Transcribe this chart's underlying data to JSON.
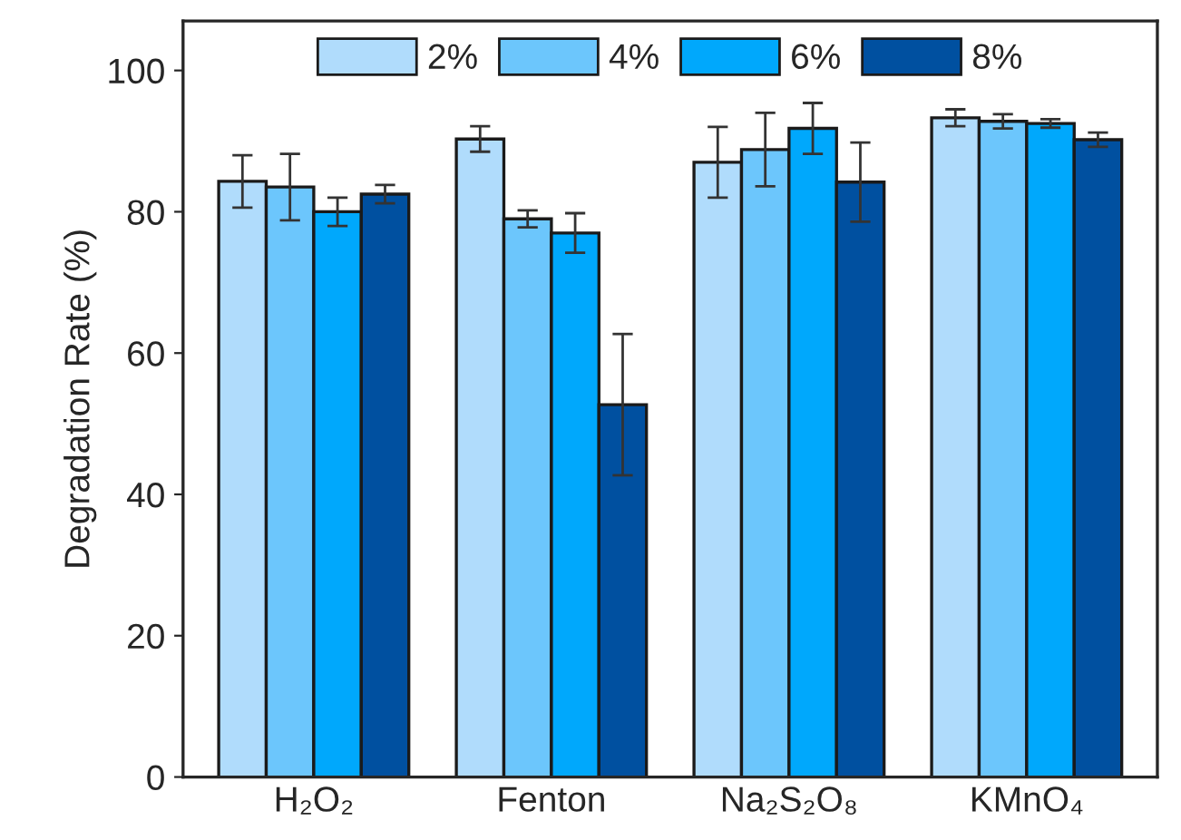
{
  "chart_data": {
    "type": "bar",
    "ylabel": "Degradation Rate (%)",
    "categories": [
      "H₂O₂",
      "Fenton",
      "Na₂S₂O₈",
      "KMnO₄"
    ],
    "series": [
      {
        "name": "2%",
        "color": "#b0dcfc",
        "values": [
          84.3,
          90.3,
          87.0,
          93.3
        ],
        "errors": [
          3.7,
          1.8,
          5.0,
          1.2
        ]
      },
      {
        "name": "4%",
        "color": "#6cc6fc",
        "values": [
          83.5,
          79.0,
          88.8,
          92.8
        ],
        "errors": [
          4.7,
          1.2,
          5.2,
          1.0
        ]
      },
      {
        "name": "6%",
        "color": "#00a8fc",
        "values": [
          80.0,
          77.0,
          91.8,
          92.5
        ],
        "errors": [
          2.0,
          2.8,
          3.6,
          0.6
        ]
      },
      {
        "name": "8%",
        "color": "#0050a0",
        "values": [
          82.5,
          52.7,
          84.2,
          90.2
        ],
        "errors": [
          1.3,
          10.0,
          5.6,
          1.0
        ]
      }
    ],
    "ylim": [
      0,
      107
    ],
    "yticks": [
      0,
      20,
      40,
      60,
      80,
      100
    ],
    "grid": false,
    "legend": "top"
  }
}
